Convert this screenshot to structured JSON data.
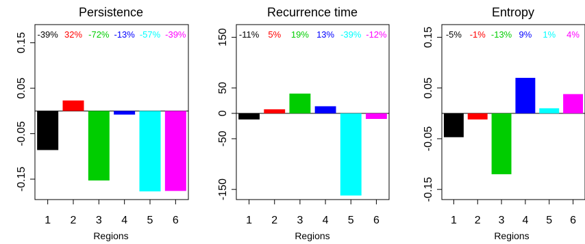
{
  "chart_data": [
    {
      "type": "bar",
      "title": "Persistence",
      "xlabel": "Regions",
      "ylabel": "",
      "categories": [
        "1",
        "2",
        "3",
        "4",
        "5",
        "6"
      ],
      "values": [
        -0.086,
        0.023,
        -0.153,
        -0.008,
        -0.177,
        -0.176
      ],
      "colors": [
        "#000000",
        "#ff0000",
        "#00cd00",
        "#0000ff",
        "#00ffff",
        "#ff00ff"
      ],
      "pct_labels": [
        "-39%",
        "32%",
        "-72%",
        "-13%",
        "-57%",
        "-39%"
      ],
      "yticks": [
        -0.15,
        -0.05,
        0.05,
        0.15
      ],
      "ytick_labels": [
        "-0.15",
        "-0.05",
        "0.05",
        "0.15"
      ],
      "ylim": [
        -0.195,
        0.19
      ],
      "baseline": 0
    },
    {
      "type": "bar",
      "title": "Recurrence time",
      "xlabel": "Regions",
      "ylabel": "",
      "categories": [
        "1",
        "2",
        "3",
        "4",
        "5",
        "6"
      ],
      "values": [
        -12,
        8,
        39,
        14,
        -162,
        -11
      ],
      "colors": [
        "#000000",
        "#ff0000",
        "#00cd00",
        "#0000ff",
        "#00ffff",
        "#ff00ff"
      ],
      "pct_labels": [
        "-11%",
        "5%",
        "19%",
        "13%",
        "-39%",
        "-12%"
      ],
      "yticks": [
        -150,
        -50,
        0,
        50,
        150
      ],
      "ytick_labels": [
        "-150",
        "-50",
        "0",
        "50",
        "150"
      ],
      "ylim": [
        -170,
        175
      ],
      "baseline": 0
    },
    {
      "type": "bar",
      "title": "Entropy",
      "xlabel": "Regions",
      "ylabel": "",
      "categories": [
        "1",
        "2",
        "3",
        "4",
        "5",
        "6"
      ],
      "values": [
        -0.047,
        -0.012,
        -0.12,
        0.07,
        0.01,
        0.038
      ],
      "colors": [
        "#000000",
        "#ff0000",
        "#00cd00",
        "#0000ff",
        "#00ffff",
        "#ff00ff"
      ],
      "pct_labels": [
        "-5%",
        "-1%",
        "-13%",
        "9%",
        "1%",
        "4%"
      ],
      "yticks": [
        -0.15,
        -0.05,
        0.05,
        0.15
      ],
      "ytick_labels": [
        "-0.15",
        "-0.05",
        "0.05",
        "0.15"
      ],
      "ylim": [
        -0.17,
        0.175
      ],
      "baseline": 0
    }
  ]
}
